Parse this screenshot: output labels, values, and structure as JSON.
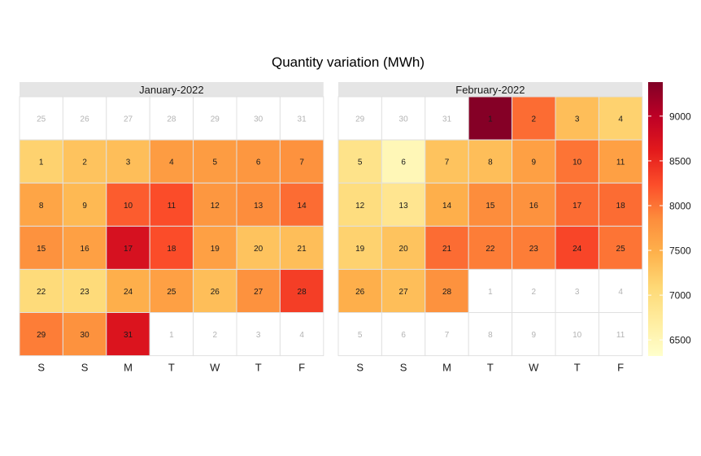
{
  "chart_data": {
    "type": "heatmap",
    "title": "Quantity variation (MWh)",
    "weekday_labels": [
      "S",
      "S",
      "M",
      "T",
      "W",
      "T",
      "F"
    ],
    "colorbar": {
      "ticks": [
        6500,
        7000,
        7500,
        8000,
        8500,
        9000
      ],
      "range": [
        6320,
        9380
      ],
      "scale": [
        "#ffffcc",
        "#ffeda0",
        "#fed976",
        "#feb24c",
        "#fd8d3c",
        "#fc4e2a",
        "#e31a1c",
        "#bd0026",
        "#800026"
      ]
    },
    "panels": [
      {
        "title": "January-2022",
        "weeks": [
          [
            {
              "d": "25",
              "v": null
            },
            {
              "d": "26",
              "v": null
            },
            {
              "d": "27",
              "v": null
            },
            {
              "d": "28",
              "v": null
            },
            {
              "d": "29",
              "v": null
            },
            {
              "d": "30",
              "v": null
            },
            {
              "d": "31",
              "v": null
            }
          ],
          [
            {
              "d": "1",
              "v": 7150
            },
            {
              "d": "2",
              "v": 7300
            },
            {
              "d": "3",
              "v": 7350
            },
            {
              "d": "4",
              "v": 7700
            },
            {
              "d": "5",
              "v": 7700
            },
            {
              "d": "6",
              "v": 7750
            },
            {
              "d": "7",
              "v": 7800
            }
          ],
          [
            {
              "d": "8",
              "v": 7600
            },
            {
              "d": "9",
              "v": 7400
            },
            {
              "d": "10",
              "v": 8150
            },
            {
              "d": "11",
              "v": 8250
            },
            {
              "d": "12",
              "v": 7750
            },
            {
              "d": "13",
              "v": 7850
            },
            {
              "d": "14",
              "v": 8050
            }
          ],
          [
            {
              "d": "15",
              "v": 7800
            },
            {
              "d": "16",
              "v": 7650
            },
            {
              "d": "17",
              "v": 8750
            },
            {
              "d": "18",
              "v": 8250
            },
            {
              "d": "19",
              "v": 7650
            },
            {
              "d": "20",
              "v": 7300
            },
            {
              "d": "21",
              "v": 7350
            }
          ],
          [
            {
              "d": "22",
              "v": 7050
            },
            {
              "d": "23",
              "v": 7050
            },
            {
              "d": "24",
              "v": 7500
            },
            {
              "d": "25",
              "v": 7650
            },
            {
              "d": "26",
              "v": 7350
            },
            {
              "d": "27",
              "v": 7800
            },
            {
              "d": "28",
              "v": 8350
            }
          ],
          [
            {
              "d": "29",
              "v": 7950
            },
            {
              "d": "30",
              "v": 7800
            },
            {
              "d": "31",
              "v": 8700
            },
            {
              "d": "1",
              "v": null
            },
            {
              "d": "2",
              "v": null
            },
            {
              "d": "3",
              "v": null
            },
            {
              "d": "4",
              "v": null
            }
          ]
        ]
      },
      {
        "title": "February-2022",
        "weeks": [
          [
            {
              "d": "29",
              "v": null
            },
            {
              "d": "30",
              "v": null
            },
            {
              "d": "31",
              "v": null
            },
            {
              "d": "1",
              "v": 9350
            },
            {
              "d": "2",
              "v": 8050
            },
            {
              "d": "3",
              "v": 7350
            },
            {
              "d": "4",
              "v": 7150
            }
          ],
          [
            {
              "d": "5",
              "v": 6900
            },
            {
              "d": "6",
              "v": 6500
            },
            {
              "d": "7",
              "v": 7300
            },
            {
              "d": "8",
              "v": 7350
            },
            {
              "d": "9",
              "v": 7650
            },
            {
              "d": "10",
              "v": 8000
            },
            {
              "d": "11",
              "v": 7650
            }
          ],
          [
            {
              "d": "12",
              "v": 7000
            },
            {
              "d": "13",
              "v": 6850
            },
            {
              "d": "14",
              "v": 7500
            },
            {
              "d": "15",
              "v": 7850
            },
            {
              "d": "16",
              "v": 7800
            },
            {
              "d": "17",
              "v": 8050
            },
            {
              "d": "18",
              "v": 8050
            }
          ],
          [
            {
              "d": "19",
              "v": 7150
            },
            {
              "d": "20",
              "v": 7300
            },
            {
              "d": "21",
              "v": 8050
            },
            {
              "d": "22",
              "v": 7950
            },
            {
              "d": "23",
              "v": 7950
            },
            {
              "d": "24",
              "v": 8300
            },
            {
              "d": "25",
              "v": 8000
            }
          ],
          [
            {
              "d": "26",
              "v": 7500
            },
            {
              "d": "27",
              "v": 7350
            },
            {
              "d": "28",
              "v": 7800
            },
            {
              "d": "1",
              "v": null
            },
            {
              "d": "2",
              "v": null
            },
            {
              "d": "3",
              "v": null
            },
            {
              "d": "4",
              "v": null
            }
          ],
          [
            {
              "d": "5",
              "v": null
            },
            {
              "d": "6",
              "v": null
            },
            {
              "d": "7",
              "v": null
            },
            {
              "d": "8",
              "v": null
            },
            {
              "d": "9",
              "v": null
            },
            {
              "d": "10",
              "v": null
            },
            {
              "d": "11",
              "v": null
            }
          ]
        ]
      }
    ]
  }
}
